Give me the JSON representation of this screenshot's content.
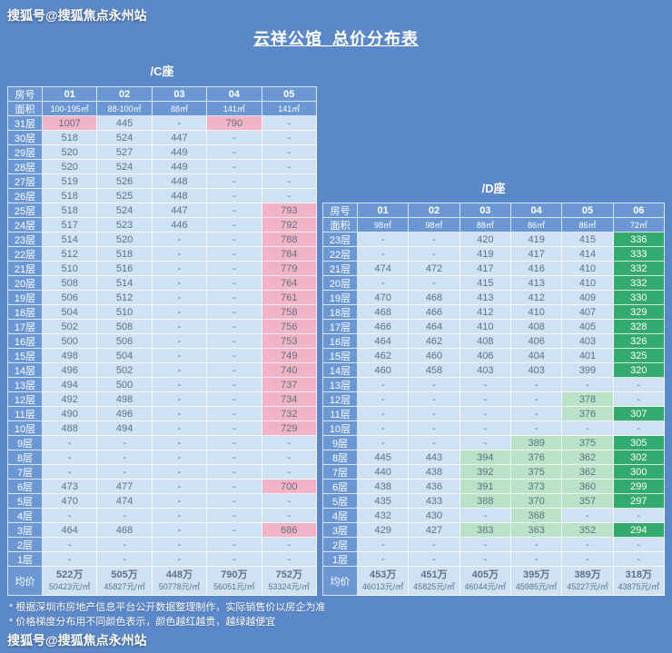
{
  "page": {
    "bg_color": "#5b88c9",
    "watermark_top": "搜狐号@搜狐焦点永州站",
    "watermark_bottom": "搜狐号@搜狐焦点永州站",
    "title": "云祥公馆_总价分布表",
    "footnotes": [
      "* 根据深圳市房地产信息平台公开数据整理制作，实际销售价以房企为准",
      "* 价格梯度分布用不同颜色表示，颜色越红越贵，越绿越便宜"
    ]
  },
  "labels": {
    "room_no": "房号",
    "area": "面积",
    "avg": "均价"
  },
  "colors": {
    "page_blue": "#5b88c9",
    "header_blue": "#6b97d3",
    "cell_default_blue": "#cfe2f4",
    "cell_expensive_pink": "#f3b3c6",
    "cell_cheap_light_green": "#b9e2c6",
    "cell_cheapest_green": "#35aa6e",
    "value_text": "#5f7185"
  },
  "chart_data": {
    "type": "table",
    "title": "云祥公馆_总价分布表",
    "legend": "颜色越红越贵，越绿越便宜",
    "value_unit": "万",
    "tables": [
      {
        "name": "/C座",
        "columns": [
          "01",
          "02",
          "03",
          "04",
          "05"
        ],
        "areas": [
          "100-195㎡",
          "88-100㎡",
          "88㎡",
          "141㎡",
          "141㎡"
        ],
        "rows": [
          {
            "f": "31层",
            "v": [
              "1007",
              "445",
              "-",
              "790",
              "-"
            ],
            "s": "pbbpb"
          },
          {
            "f": "30层",
            "v": [
              "518",
              "524",
              "447",
              "-",
              "-"
            ],
            "s": "bbbbb"
          },
          {
            "f": "29层",
            "v": [
              "520",
              "527",
              "449",
              "-",
              "-"
            ],
            "s": "bbbbb"
          },
          {
            "f": "28层",
            "v": [
              "520",
              "524",
              "449",
              "-",
              "-"
            ],
            "s": "bbbbb"
          },
          {
            "f": "27层",
            "v": [
              "519",
              "526",
              "448",
              "-",
              "-"
            ],
            "s": "bbbbb"
          },
          {
            "f": "26层",
            "v": [
              "518",
              "525",
              "448",
              "-",
              "-"
            ],
            "s": "bbbbb"
          },
          {
            "f": "25层",
            "v": [
              "518",
              "524",
              "447",
              "-",
              "793"
            ],
            "s": "bbbbp"
          },
          {
            "f": "24层",
            "v": [
              "517",
              "523",
              "446",
              "-",
              "792"
            ],
            "s": "bbbbp"
          },
          {
            "f": "23层",
            "v": [
              "514",
              "520",
              "-",
              "-",
              "788"
            ],
            "s": "bbbbp"
          },
          {
            "f": "22层",
            "v": [
              "512",
              "518",
              "-",
              "-",
              "784"
            ],
            "s": "bbbbp"
          },
          {
            "f": "21层",
            "v": [
              "510",
              "516",
              "-",
              "-",
              "779"
            ],
            "s": "bbbbp"
          },
          {
            "f": "20层",
            "v": [
              "508",
              "514",
              "-",
              "-",
              "764"
            ],
            "s": "bbbbp"
          },
          {
            "f": "19层",
            "v": [
              "506",
              "512",
              "-",
              "-",
              "761"
            ],
            "s": "bbbbp"
          },
          {
            "f": "18层",
            "v": [
              "504",
              "510",
              "-",
              "-",
              "758"
            ],
            "s": "bbbbp"
          },
          {
            "f": "17层",
            "v": [
              "502",
              "508",
              "-",
              "-",
              "756"
            ],
            "s": "bbbbp"
          },
          {
            "f": "16层",
            "v": [
              "500",
              "506",
              "-",
              "-",
              "753"
            ],
            "s": "bbbbp"
          },
          {
            "f": "15层",
            "v": [
              "498",
              "504",
              "-",
              "-",
              "749"
            ],
            "s": "bbbbp"
          },
          {
            "f": "14层",
            "v": [
              "496",
              "502",
              "-",
              "-",
              "740"
            ],
            "s": "bbbbp"
          },
          {
            "f": "13层",
            "v": [
              "494",
              "500",
              "-",
              "-",
              "737"
            ],
            "s": "bbbbp"
          },
          {
            "f": "12层",
            "v": [
              "492",
              "498",
              "-",
              "-",
              "734"
            ],
            "s": "bbbbp"
          },
          {
            "f": "11层",
            "v": [
              "490",
              "496",
              "-",
              "-",
              "732"
            ],
            "s": "bbbbp"
          },
          {
            "f": "10层",
            "v": [
              "488",
              "494",
              "-",
              "-",
              "729"
            ],
            "s": "bbbbp"
          },
          {
            "f": "9层",
            "v": [
              "-",
              "-",
              "-",
              "-",
              "-"
            ],
            "s": "bbbbb"
          },
          {
            "f": "8层",
            "v": [
              "-",
              "-",
              "-",
              "-",
              "-"
            ],
            "s": "bbbbb"
          },
          {
            "f": "7层",
            "v": [
              "-",
              "-",
              "-",
              "-",
              "-"
            ],
            "s": "bbbbb"
          },
          {
            "f": "6层",
            "v": [
              "473",
              "477",
              "-",
              "-",
              "700"
            ],
            "s": "bbbbp"
          },
          {
            "f": "5层",
            "v": [
              "470",
              "474",
              "-",
              "-",
              "-"
            ],
            "s": "bbbbb"
          },
          {
            "f": "4层",
            "v": [
              "-",
              "-",
              "-",
              "-",
              "-"
            ],
            "s": "bbbbb"
          },
          {
            "f": "3层",
            "v": [
              "464",
              "468",
              "-",
              "-",
              "686"
            ],
            "s": "bbbbp"
          },
          {
            "f": "2层",
            "v": [
              "-",
              "-",
              "-",
              "-",
              "-"
            ],
            "s": "bbbbb"
          },
          {
            "f": "1层",
            "v": [
              "-",
              "-",
              "-",
              "-",
              "-"
            ],
            "s": "bbbbb"
          }
        ],
        "averages": [
          {
            "wan": "522万",
            "unit": "50423元/㎡"
          },
          {
            "wan": "505万",
            "unit": "45827元/㎡"
          },
          {
            "wan": "448万",
            "unit": "50778元/㎡"
          },
          {
            "wan": "790万",
            "unit": "56051元/㎡"
          },
          {
            "wan": "752万",
            "unit": "53324元/㎡"
          }
        ]
      },
      {
        "name": "/D座",
        "columns": [
          "01",
          "02",
          "03",
          "04",
          "05",
          "06"
        ],
        "areas": [
          "98㎡",
          "98㎡",
          "88㎡",
          "86㎡",
          "86㎡",
          "72㎡"
        ],
        "rows": [
          {
            "f": "23层",
            "v": [
              "-",
              "-",
              "420",
              "419",
              "415",
              "336"
            ],
            "s": "bbbbbg"
          },
          {
            "f": "22层",
            "v": [
              "-",
              "-",
              "419",
              "417",
              "414",
              "333"
            ],
            "s": "bbbbbg"
          },
          {
            "f": "21层",
            "v": [
              "474",
              "472",
              "417",
              "416",
              "410",
              "332"
            ],
            "s": "bbbbbg"
          },
          {
            "f": "20层",
            "v": [
              "-",
              "-",
              "415",
              "413",
              "410",
              "332"
            ],
            "s": "bbbbbg"
          },
          {
            "f": "19层",
            "v": [
              "470",
              "468",
              "413",
              "412",
              "409",
              "330"
            ],
            "s": "bbbbbg"
          },
          {
            "f": "18层",
            "v": [
              "468",
              "466",
              "412",
              "410",
              "407",
              "329"
            ],
            "s": "bbbbbg"
          },
          {
            "f": "17层",
            "v": [
              "466",
              "464",
              "410",
              "408",
              "405",
              "328"
            ],
            "s": "bbbbbg"
          },
          {
            "f": "16层",
            "v": [
              "464",
              "462",
              "408",
              "406",
              "403",
              "326"
            ],
            "s": "bbbbbg"
          },
          {
            "f": "15层",
            "v": [
              "462",
              "460",
              "406",
              "404",
              "401",
              "325"
            ],
            "s": "bbbbbg"
          },
          {
            "f": "14层",
            "v": [
              "460",
              "458",
              "403",
              "403",
              "399",
              "320"
            ],
            "s": "bbbbbg"
          },
          {
            "f": "13层",
            "v": [
              "-",
              "-",
              "-",
              "-",
              "-",
              "-"
            ],
            "s": "bbbbbb"
          },
          {
            "f": "12层",
            "v": [
              "-",
              "-",
              "-",
              "-",
              "378",
              "-"
            ],
            "s": "bbbblb"
          },
          {
            "f": "11层",
            "v": [
              "-",
              "-",
              "-",
              "-",
              "376",
              "307"
            ],
            "s": "bbbblg"
          },
          {
            "f": "10层",
            "v": [
              "-",
              "-",
              "-",
              "-",
              "-",
              "-"
            ],
            "s": "bbbbbb"
          },
          {
            "f": "9层",
            "v": [
              "-",
              "-",
              "-",
              "389",
              "375",
              "305"
            ],
            "s": "bbbllg"
          },
          {
            "f": "8层",
            "v": [
              "445",
              "443",
              "394",
              "376",
              "362",
              "302"
            ],
            "s": "bblllg"
          },
          {
            "f": "7层",
            "v": [
              "440",
              "438",
              "392",
              "375",
              "362",
              "300"
            ],
            "s": "bblllg"
          },
          {
            "f": "6层",
            "v": [
              "438",
              "436",
              "391",
              "373",
              "360",
              "299"
            ],
            "s": "bblllg"
          },
          {
            "f": "5层",
            "v": [
              "435",
              "433",
              "388",
              "370",
              "357",
              "297"
            ],
            "s": "bblllg"
          },
          {
            "f": "4层",
            "v": [
              "432",
              "430",
              "-",
              "368",
              "-",
              "-"
            ],
            "s": "bbblbb"
          },
          {
            "f": "3层",
            "v": [
              "429",
              "427",
              "383",
              "363",
              "352",
              "294"
            ],
            "s": "bblllg"
          },
          {
            "f": "2层",
            "v": [
              "-",
              "-",
              "-",
              "-",
              "-",
              "-"
            ],
            "s": "bbbbbb"
          },
          {
            "f": "1层",
            "v": [
              "-",
              "-",
              "-",
              "-",
              "-",
              "-"
            ],
            "s": "bbbbbb"
          }
        ],
        "averages": [
          {
            "wan": "453万",
            "unit": "46013元/㎡"
          },
          {
            "wan": "451万",
            "unit": "45825元/㎡"
          },
          {
            "wan": "405万",
            "unit": "46044元/㎡"
          },
          {
            "wan": "395万",
            "unit": "45985元/㎡"
          },
          {
            "wan": "389万",
            "unit": "45227元/㎡"
          },
          {
            "wan": "318万",
            "unit": "43875元/㎡"
          }
        ]
      }
    ]
  }
}
